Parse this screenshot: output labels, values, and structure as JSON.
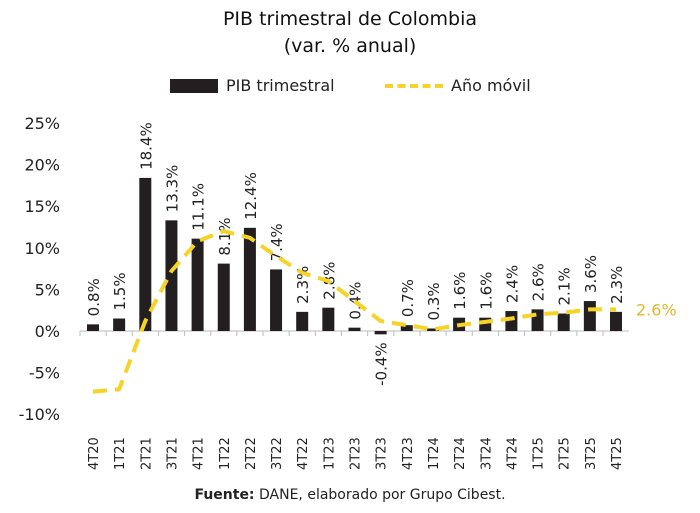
{
  "chart_data": {
    "type": "bar",
    "title": "PIB trimestral de Colombia",
    "subtitle": "(var. % anual)",
    "categories": [
      "4T20",
      "1T21",
      "2T21",
      "3T21",
      "4T21",
      "1T22",
      "2T22",
      "3T22",
      "4T22",
      "1T23",
      "2T23",
      "3T23",
      "4T23",
      "1T24",
      "2T24",
      "3T24",
      "4T24",
      "1T25",
      "2T25",
      "3T25",
      "4T25"
    ],
    "series": [
      {
        "name": "PIB trimestral",
        "type": "bar",
        "color": "#231f20",
        "values": [
          0.8,
          1.5,
          18.4,
          13.3,
          11.1,
          8.1,
          12.4,
          7.4,
          2.3,
          2.8,
          0.4,
          -0.4,
          0.7,
          0.3,
          1.6,
          1.6,
          2.4,
          2.6,
          2.1,
          3.6,
          2.3
        ],
        "labels": [
          "0.8%",
          "1.5%",
          "18.4%",
          "13.3%",
          "11.1%",
          "8.1%",
          "12.4%",
          "7.4%",
          "2.3%",
          "2.8%",
          "0.4%",
          "-0.4%",
          "0.7%",
          "0.3%",
          "1.6%",
          "1.6%",
          "2.4%",
          "2.6%",
          "2.1%",
          "3.6%",
          "2.3%"
        ]
      },
      {
        "name": "Año móvil",
        "type": "line",
        "style": "dashed",
        "color": "#f5d327",
        "values": [
          -7.3,
          -7.0,
          1.2,
          7.2,
          10.8,
          12.0,
          11.2,
          9.0,
          7.0,
          6.0,
          3.6,
          1.2,
          0.7,
          0.2,
          0.7,
          1.1,
          1.5,
          2.0,
          2.2,
          2.6,
          2.6
        ],
        "end_label": "2.6%"
      }
    ],
    "ylim": [
      -10,
      25
    ],
    "yticks": [
      "-10%",
      "-5%",
      "0%",
      "5%",
      "10%",
      "15%",
      "20%",
      "25%"
    ],
    "legend": "top",
    "grid": false
  },
  "source": {
    "bold": "Fuente:",
    "text": " DANE, elaborado por Grupo Cibest."
  }
}
